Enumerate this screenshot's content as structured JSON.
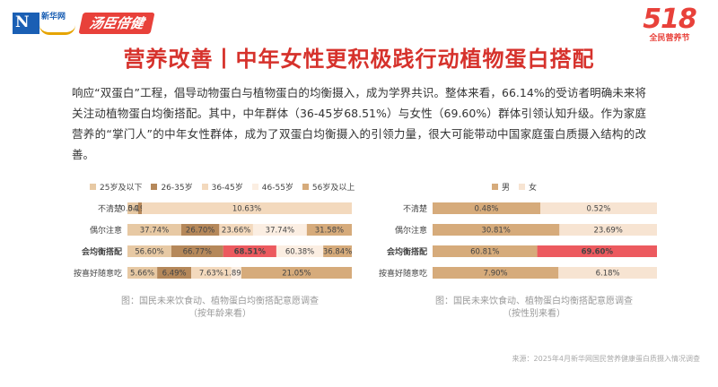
{
  "header": {
    "xinhua_logo_text": "新华网",
    "xinhua_logo_mark": "N",
    "brand": "汤臣倍健",
    "event_number": "518",
    "event_sub": "全民营养节"
  },
  "title": "营养改善丨中年女性更积极践行动植物蛋白搭配",
  "intro": "响应“双蛋白”工程，倡导动物蛋白与植物蛋白的均衡摄入，成为学界共识。整体来看，66.14%的受访者明确未来将关注动植物蛋白均衡搭配。其中，中年群体（36-45岁68.51%）与女性（69.60%）群体引领认知升级。作为家庭营养的“掌门人”的中年女性群体，成为了双蛋白均衡摄入的引领力量，很大可能带动中国家庭蛋白质摄入结构的改善。",
  "colors": {
    "accent": "#d6322c",
    "highlight_label": "#e8413a",
    "age": [
      "#e7c9a4",
      "#b5885a",
      "#f3d9bd",
      "#fbeee2",
      "#d6ab7b"
    ],
    "gender": [
      "#d6ab7b",
      "#f7e4d2"
    ],
    "highlight_bar": "#ec5a5f"
  },
  "chart_data": [
    {
      "type": "bar",
      "stacked": true,
      "orientation": "horizontal",
      "categories": [
        "不清楚",
        "偶尔注意",
        "会均衡搭配",
        "按喜好随意吃"
      ],
      "highlight_category": "会均衡搭配",
      "highlight_series": "36-45岁",
      "series": [
        {
          "name": "25岁及以下",
          "values": [
            0.54,
            37.74,
            56.6,
            5.66
          ],
          "labels": [
            "0.54%",
            "37.74%",
            "56.60%",
            "5.66%"
          ]
        },
        {
          "name": "26-35岁",
          "values": [
            0.19,
            26.7,
            66.77,
            6.49
          ],
          "labels": [
            "0.19%",
            "26.70%",
            "66.77%",
            "6.49%"
          ]
        },
        {
          "name": "36-45岁",
          "values": [
            10.63,
            23.66,
            68.51,
            7.63
          ],
          "labels": [
            "10.63%",
            "23.66%",
            "68.51%",
            "7.63%"
          ]
        },
        {
          "name": "46-55岁",
          "values": [
            0,
            37.74,
            60.38,
            1.89
          ],
          "labels": [
            "",
            "37.74%",
            "60.38%",
            "1.89%"
          ]
        },
        {
          "name": "56岁及以上",
          "values": [
            0,
            31.58,
            36.84,
            21.05
          ],
          "labels": [
            "",
            "31.58%",
            "36.84%",
            "21.05%"
          ]
        }
      ],
      "caption_line1": "图：国民未来饮食动、植物蛋白均衡搭配意愿调查",
      "caption_line2": "（按年龄来看）"
    },
    {
      "type": "bar",
      "stacked": true,
      "orientation": "horizontal",
      "categories": [
        "不清楚",
        "偶尔注意",
        "会均衡搭配",
        "按喜好随意吃"
      ],
      "highlight_category": "会均衡搭配",
      "highlight_series": "女",
      "series": [
        {
          "name": "男",
          "values": [
            0.48,
            30.81,
            60.81,
            7.9
          ],
          "labels": [
            "0.48%",
            "30.81%",
            "60.81%",
            "7.90%"
          ]
        },
        {
          "name": "女",
          "values": [
            0.52,
            23.69,
            69.6,
            6.18
          ],
          "labels": [
            "0.52%",
            "23.69%",
            "69.60%",
            "6.18%"
          ]
        }
      ],
      "caption_line1": "图：国民未来饮食动、植物蛋白均衡搭配意愿调查",
      "caption_line2": "（按性别来看）"
    }
  ],
  "source": "来源：2025年4月新华网国民营养健康蛋白质摄入情况调查"
}
